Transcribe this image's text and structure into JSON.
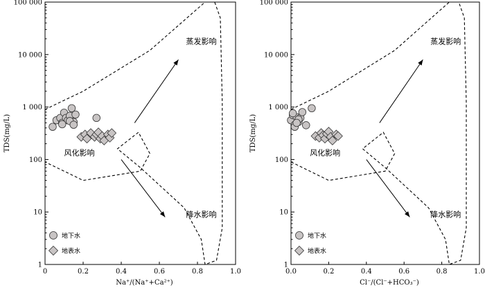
{
  "chart_data": [
    {
      "type": "scatter",
      "xlabel": "Na⁺/(Na⁺+Ca²⁺)",
      "ylabel": "TDS(mg/L)",
      "xlim": [
        0,
        1.0
      ],
      "ylim": [
        1,
        100000
      ],
      "yscale": "log",
      "xticks": [
        "0",
        "0.2",
        "0.4",
        "0.6",
        "0.8",
        "1.0"
      ],
      "yticks": [
        "1",
        "10",
        "100",
        "1 000",
        "10 000",
        "100 000"
      ],
      "grid": false,
      "legend": "bottom-left",
      "annotations": {
        "evaporation": "蒸发影响",
        "weathering": "风化影响",
        "precipitation": "降水影响"
      },
      "series": [
        {
          "name": "地下水",
          "marker": "circle",
          "x": [
            0.04,
            0.06,
            0.08,
            0.09,
            0.1,
            0.11,
            0.12,
            0.13,
            0.14,
            0.15,
            0.16,
            0.09,
            0.13,
            0.15,
            0.27
          ],
          "y": [
            420,
            560,
            620,
            500,
            780,
            620,
            560,
            680,
            950,
            520,
            720,
            470,
            540,
            460,
            620
          ]
        },
        {
          "name": "地表水",
          "marker": "diamond",
          "x": [
            0.19,
            0.21,
            0.22,
            0.24,
            0.26,
            0.27,
            0.28,
            0.29,
            0.3,
            0.31,
            0.33,
            0.34,
            0.35
          ],
          "y": [
            270,
            300,
            250,
            320,
            270,
            300,
            330,
            250,
            280,
            230,
            300,
            260,
            320
          ]
        }
      ]
    },
    {
      "type": "scatter",
      "xlabel": "Cl⁻/(Cl⁻+HCO₃⁻)",
      "ylabel": "TDS(mg/L)",
      "xlim": [
        0,
        1.0
      ],
      "ylim": [
        1,
        100000
      ],
      "yscale": "log",
      "xticks": [
        "0.0",
        "0.2",
        "0.4",
        "0.6",
        "0.8",
        "1.0"
      ],
      "yticks": [
        "1",
        "10",
        "100",
        "1 000",
        "10 000",
        "100 000"
      ],
      "grid": false,
      "legend": "bottom-left",
      "annotations": {
        "evaporation": "蒸发影响",
        "weathering": "风化影响",
        "precipitation": "降水影响"
      },
      "series": [
        {
          "name": "地下水",
          "marker": "circle",
          "x": [
            0.0,
            0.01,
            0.02,
            0.03,
            0.04,
            0.05,
            0.06,
            0.02,
            0.04,
            0.08,
            0.11,
            0.01,
            0.03
          ],
          "y": [
            560,
            700,
            460,
            640,
            520,
            620,
            800,
            420,
            580,
            450,
            950,
            760,
            500
          ]
        },
        {
          "name": "地表水",
          "marker": "diamond",
          "x": [
            0.13,
            0.15,
            0.16,
            0.17,
            0.18,
            0.19,
            0.2,
            0.21,
            0.22,
            0.24,
            0.25
          ],
          "y": [
            280,
            260,
            320,
            290,
            250,
            310,
            340,
            270,
            230,
            300,
            280
          ]
        }
      ]
    }
  ]
}
